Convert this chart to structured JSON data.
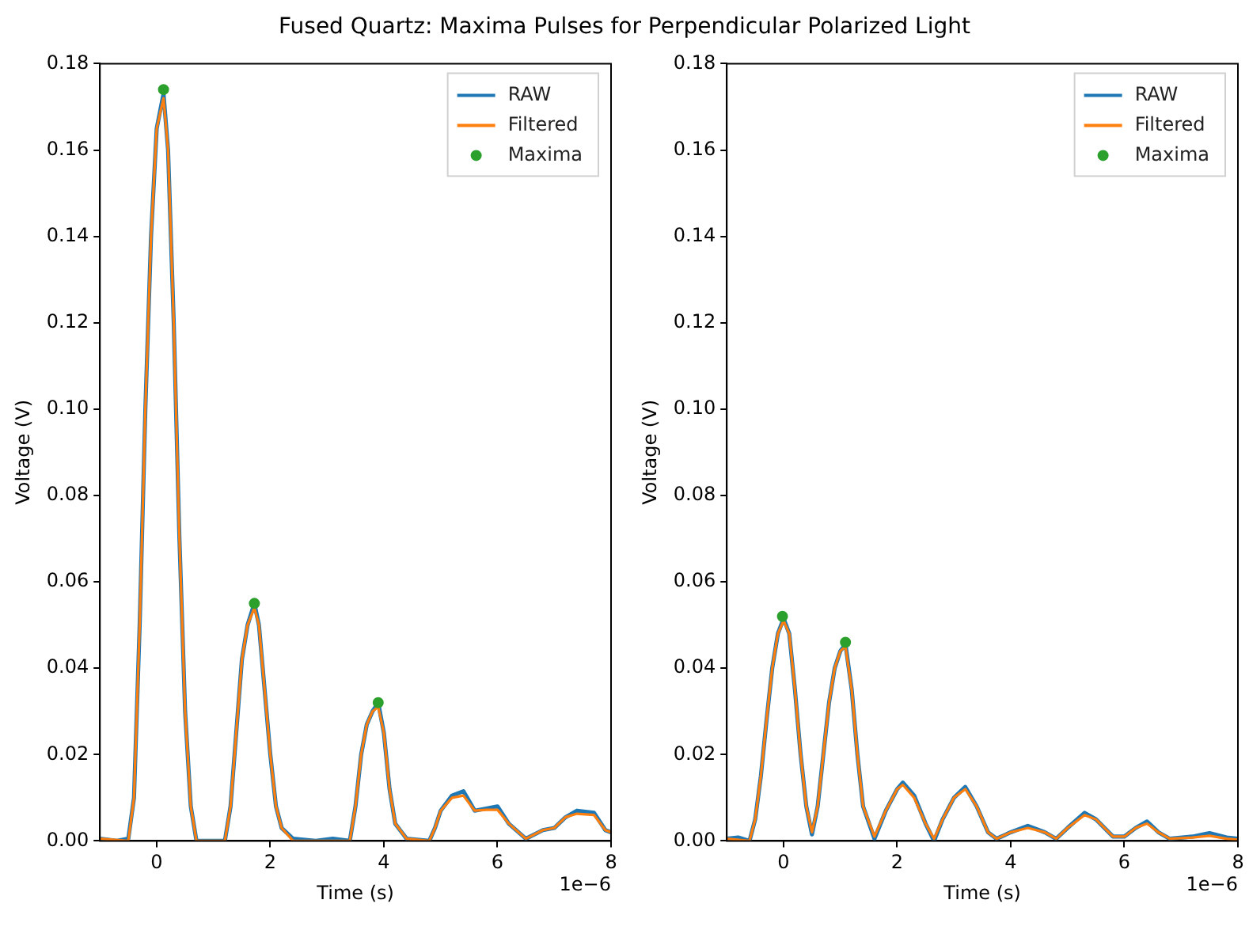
{
  "chart_data": [
    {
      "type": "line",
      "title": "Fused Quartz: Maxima Pulses for Perpendicular Polarized Light",
      "xlabel": "Time (s)",
      "ylabel": "Voltage (V)",
      "annotations": [
        "1e−6"
      ],
      "xlim": [
        -1,
        8
      ],
      "xticks": [
        0,
        2,
        4,
        6,
        8
      ],
      "ylim": [
        0,
        0.18
      ],
      "yticks": [
        {
          "value": 0,
          "label": "0.00"
        },
        {
          "value": 0.02,
          "label": "0.02"
        },
        {
          "value": 0.04,
          "label": "0.04"
        },
        {
          "value": 0.06,
          "label": "0.06"
        },
        {
          "value": 0.08,
          "label": "0.08"
        },
        {
          "value": 0.1,
          "label": "0.10"
        },
        {
          "value": 0.12,
          "label": "0.12"
        },
        {
          "value": 0.14,
          "label": "0.14"
        },
        {
          "value": 0.16,
          "label": "0.16"
        },
        {
          "value": 0.18,
          "label": "0.18"
        }
      ],
      "grid": false,
      "legend": "top right",
      "series": [
        {
          "name": "RAW",
          "type": "line",
          "color": "#1f77b4",
          "x": [
            -1,
            -0.7,
            -0.5,
            -0.4,
            -0.3,
            -0.2,
            -0.1,
            0,
            0.12,
            0.2,
            0.3,
            0.4,
            0.5,
            0.6,
            0.7,
            1.0,
            1.2,
            1.3,
            1.4,
            1.5,
            1.6,
            1.72,
            1.8,
            1.9,
            2.0,
            2.1,
            2.2,
            2.4,
            2.8,
            3.1,
            3.4,
            3.5,
            3.6,
            3.7,
            3.8,
            3.9,
            4.0,
            4.1,
            4.2,
            4.4,
            4.8,
            4.9,
            5.0,
            5.2,
            5.4,
            5.6,
            5.8,
            6.0,
            6.2,
            6.5,
            6.8,
            7.0,
            7.2,
            7.4,
            7.7,
            7.9,
            8
          ],
          "values": [
            0.0005,
            0,
            0.0005,
            0.01,
            0.05,
            0.1,
            0.14,
            0.165,
            0.173,
            0.16,
            0.12,
            0.07,
            0.03,
            0.008,
            0,
            0,
            0,
            0.008,
            0.025,
            0.042,
            0.05,
            0.055,
            0.05,
            0.035,
            0.02,
            0.008,
            0.003,
            0.0005,
            0,
            0.0005,
            0,
            0.008,
            0.02,
            0.027,
            0.03,
            0.032,
            0.025,
            0.012,
            0.004,
            0.0005,
            0,
            0.003,
            0.007,
            0.0105,
            0.0115,
            0.007,
            0.0075,
            0.008,
            0.004,
            0.0005,
            0.0025,
            0.003,
            0.0055,
            0.007,
            0.0065,
            0.0025,
            0.002
          ]
        },
        {
          "name": "Filtered",
          "type": "line",
          "color": "#ff7f0e",
          "x": [
            -1,
            -0.5,
            -0.4,
            -0.3,
            -0.2,
            -0.1,
            0,
            0.12,
            0.2,
            0.3,
            0.4,
            0.5,
            0.6,
            0.7,
            1.2,
            1.3,
            1.4,
            1.5,
            1.6,
            1.72,
            1.8,
            1.9,
            2.0,
            2.1,
            2.2,
            2.4,
            3.4,
            3.5,
            3.6,
            3.7,
            3.8,
            3.9,
            4.0,
            4.1,
            4.2,
            4.4,
            4.8,
            4.9,
            5.0,
            5.2,
            5.4,
            5.6,
            5.8,
            6.0,
            6.2,
            6.5,
            6.8,
            7.0,
            7.2,
            7.4,
            7.7,
            7.9,
            8
          ],
          "values": [
            0.0005,
            0,
            0.01,
            0.05,
            0.1,
            0.14,
            0.165,
            0.172,
            0.16,
            0.12,
            0.07,
            0.03,
            0.008,
            0,
            0,
            0.008,
            0.025,
            0.042,
            0.05,
            0.054,
            0.05,
            0.035,
            0.02,
            0.008,
            0.003,
            0,
            0,
            0.008,
            0.02,
            0.027,
            0.03,
            0.031,
            0.025,
            0.012,
            0.004,
            0.0005,
            0,
            0.003,
            0.007,
            0.01,
            0.0105,
            0.007,
            0.0072,
            0.0072,
            0.004,
            0.0005,
            0.0025,
            0.003,
            0.0055,
            0.0063,
            0.006,
            0.0025,
            0.002
          ]
        },
        {
          "name": "Maxima",
          "type": "scatter",
          "marker": "circle",
          "color": "#2ca02c",
          "x": [
            0.12,
            1.72,
            3.9
          ],
          "values": [
            0.174,
            0.055,
            0.032
          ]
        }
      ]
    },
    {
      "type": "line",
      "xlabel": "Time (s)",
      "ylabel": "Voltage (V)",
      "annotations": [
        "1e−6"
      ],
      "xlim": [
        -1,
        8
      ],
      "xticks": [
        0,
        2,
        4,
        6,
        8
      ],
      "ylim": [
        0,
        0.18
      ],
      "yticks": [
        {
          "value": 0,
          "label": "0.00"
        },
        {
          "value": 0.02,
          "label": "0.02"
        },
        {
          "value": 0.04,
          "label": "0.04"
        },
        {
          "value": 0.06,
          "label": "0.06"
        },
        {
          "value": 0.08,
          "label": "0.08"
        },
        {
          "value": 0.1,
          "label": "0.10"
        },
        {
          "value": 0.12,
          "label": "0.12"
        },
        {
          "value": 0.14,
          "label": "0.14"
        },
        {
          "value": 0.16,
          "label": "0.16"
        },
        {
          "value": 0.18,
          "label": "0.18"
        }
      ],
      "grid": false,
      "legend": "top right",
      "series": [
        {
          "name": "RAW",
          "type": "line",
          "color": "#1f77b4",
          "x": [
            -1,
            -0.8,
            -0.6,
            -0.5,
            -0.4,
            -0.3,
            -0.2,
            -0.1,
            0,
            0.1,
            0.2,
            0.3,
            0.4,
            0.5,
            0.6,
            0.7,
            0.8,
            0.9,
            1.0,
            1.09,
            1.2,
            1.3,
            1.4,
            1.6,
            1.8,
            2.0,
            2.1,
            2.3,
            2.5,
            2.65,
            2.8,
            3.0,
            3.2,
            3.4,
            3.6,
            3.75,
            4.0,
            4.3,
            4.6,
            4.8,
            5.0,
            5.3,
            5.5,
            5.8,
            6.0,
            6.2,
            6.4,
            6.6,
            6.8,
            7.2,
            7.5,
            7.8,
            8
          ],
          "values": [
            0.0005,
            0.0008,
            0,
            0.005,
            0.015,
            0.028,
            0.04,
            0.048,
            0.0515,
            0.048,
            0.035,
            0.02,
            0.008,
            0.0015,
            0.008,
            0.02,
            0.032,
            0.04,
            0.044,
            0.0455,
            0.035,
            0.02,
            0.008,
            0.0005,
            0.007,
            0.012,
            0.0135,
            0.0105,
            0.004,
            0,
            0.005,
            0.01,
            0.0125,
            0.008,
            0.002,
            0.0005,
            0.002,
            0.0035,
            0.002,
            0.0005,
            0.003,
            0.0065,
            0.005,
            0.001,
            0.001,
            0.003,
            0.0045,
            0.002,
            0.0005,
            0.001,
            0.0018,
            0.0008,
            0.0005
          ]
        },
        {
          "name": "Filtered",
          "type": "line",
          "color": "#ff7f0e",
          "x": [
            -1,
            -0.6,
            -0.5,
            -0.4,
            -0.3,
            -0.2,
            -0.1,
            0,
            0.1,
            0.2,
            0.3,
            0.4,
            0.5,
            0.6,
            0.7,
            0.8,
            0.9,
            1.0,
            1.09,
            1.2,
            1.3,
            1.4,
            1.6,
            1.8,
            2.0,
            2.1,
            2.3,
            2.5,
            2.65,
            2.8,
            3.0,
            3.2,
            3.4,
            3.6,
            3.75,
            4.0,
            4.3,
            4.6,
            4.8,
            5.0,
            5.3,
            5.5,
            5.8,
            6.0,
            6.2,
            6.4,
            6.6,
            6.8,
            7.2,
            7.5,
            7.8,
            8
          ],
          "values": [
            0.0005,
            0,
            0.005,
            0.015,
            0.028,
            0.04,
            0.048,
            0.051,
            0.048,
            0.035,
            0.02,
            0.008,
            0.002,
            0.008,
            0.02,
            0.032,
            0.04,
            0.044,
            0.045,
            0.035,
            0.02,
            0.008,
            0.001,
            0.007,
            0.012,
            0.013,
            0.01,
            0.004,
            0.0005,
            0.005,
            0.01,
            0.012,
            0.008,
            0.002,
            0.0005,
            0.002,
            0.003,
            0.002,
            0.0005,
            0.003,
            0.006,
            0.005,
            0.001,
            0.001,
            0.003,
            0.004,
            0.002,
            0.0005,
            0.0008,
            0.0012,
            0.0005,
            0.0003
          ]
        },
        {
          "name": "Maxima",
          "type": "scatter",
          "marker": "circle",
          "color": "#2ca02c",
          "x": [
            -0.02,
            1.09
          ],
          "values": [
            0.052,
            0.046
          ]
        }
      ]
    }
  ]
}
